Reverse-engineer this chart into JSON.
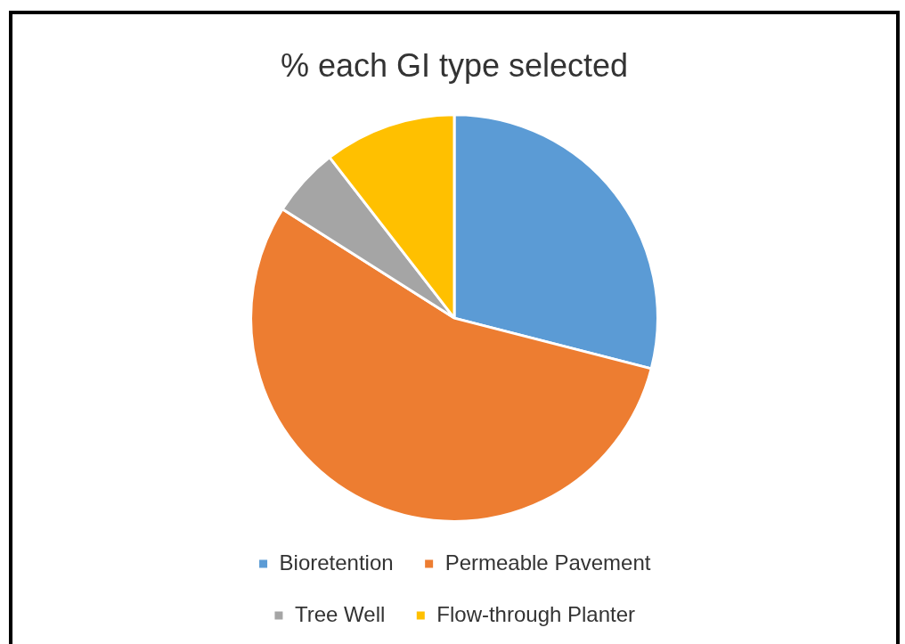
{
  "chart_data": {
    "type": "pie",
    "title": "% each GI type selected",
    "categories": [
      "Bioretention",
      "Permeable Pavement",
      "Tree Well",
      "Flow-through Planter"
    ],
    "values": [
      29,
      55,
      5.5,
      10.5
    ],
    "colors": [
      "#5b9bd5",
      "#ed7d31",
      "#a5a5a5",
      "#ffc000"
    ],
    "legend": "bottom"
  }
}
